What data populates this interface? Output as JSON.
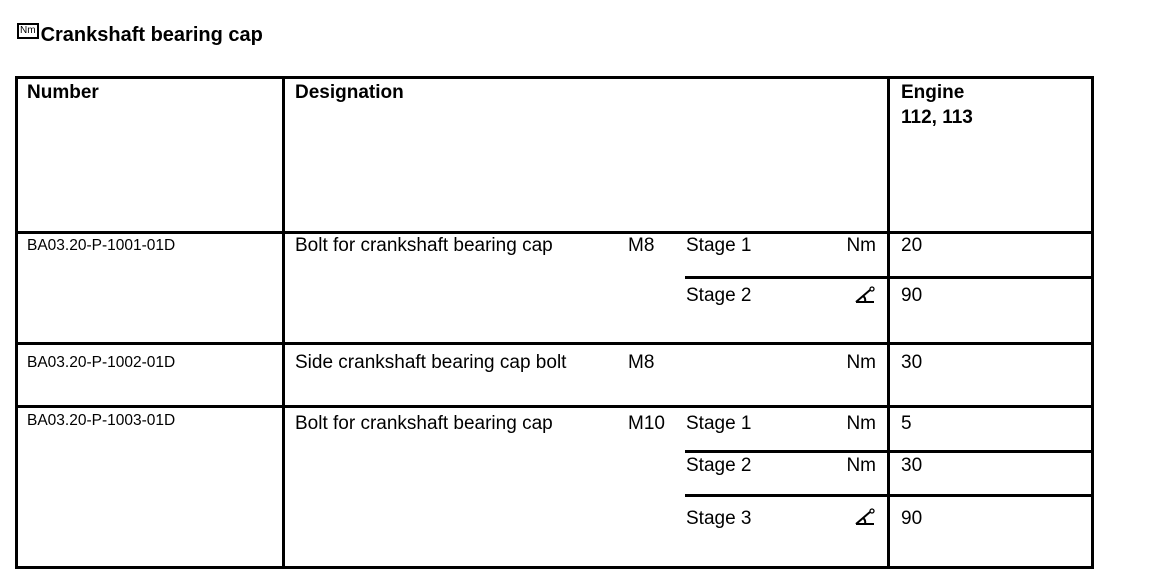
{
  "title": {
    "icon": "Nm",
    "text": "Crankshaft bearing cap"
  },
  "table": {
    "headers": {
      "number": "Number",
      "designation": "Designation",
      "engine_label": "Engine",
      "engine_models": "112, 113"
    },
    "rows": [
      {
        "number": "BA03.20-P-1001-01D",
        "designation": "Bolt for crankshaft bearing cap",
        "thread": "M8",
        "stages": [
          {
            "stage": "Stage 1",
            "unit": "Nm",
            "value": "20"
          },
          {
            "stage": "Stage 2",
            "unit": "angle-icon",
            "value": "90"
          }
        ]
      },
      {
        "number": "BA03.20-P-1002-01D",
        "designation": "Side crankshaft bearing cap bolt",
        "thread": "M8",
        "stages": [
          {
            "stage": "",
            "unit": "Nm",
            "value": "30"
          }
        ]
      },
      {
        "number": "BA03.20-P-1003-01D",
        "designation": "Bolt for crankshaft bearing cap",
        "thread": "M10",
        "stages": [
          {
            "stage": "Stage 1",
            "unit": "Nm",
            "value": "5"
          },
          {
            "stage": "Stage 2",
            "unit": "Nm",
            "value": "30"
          },
          {
            "stage": "Stage 3",
            "unit": "angle-icon",
            "value": "90"
          }
        ]
      }
    ]
  }
}
